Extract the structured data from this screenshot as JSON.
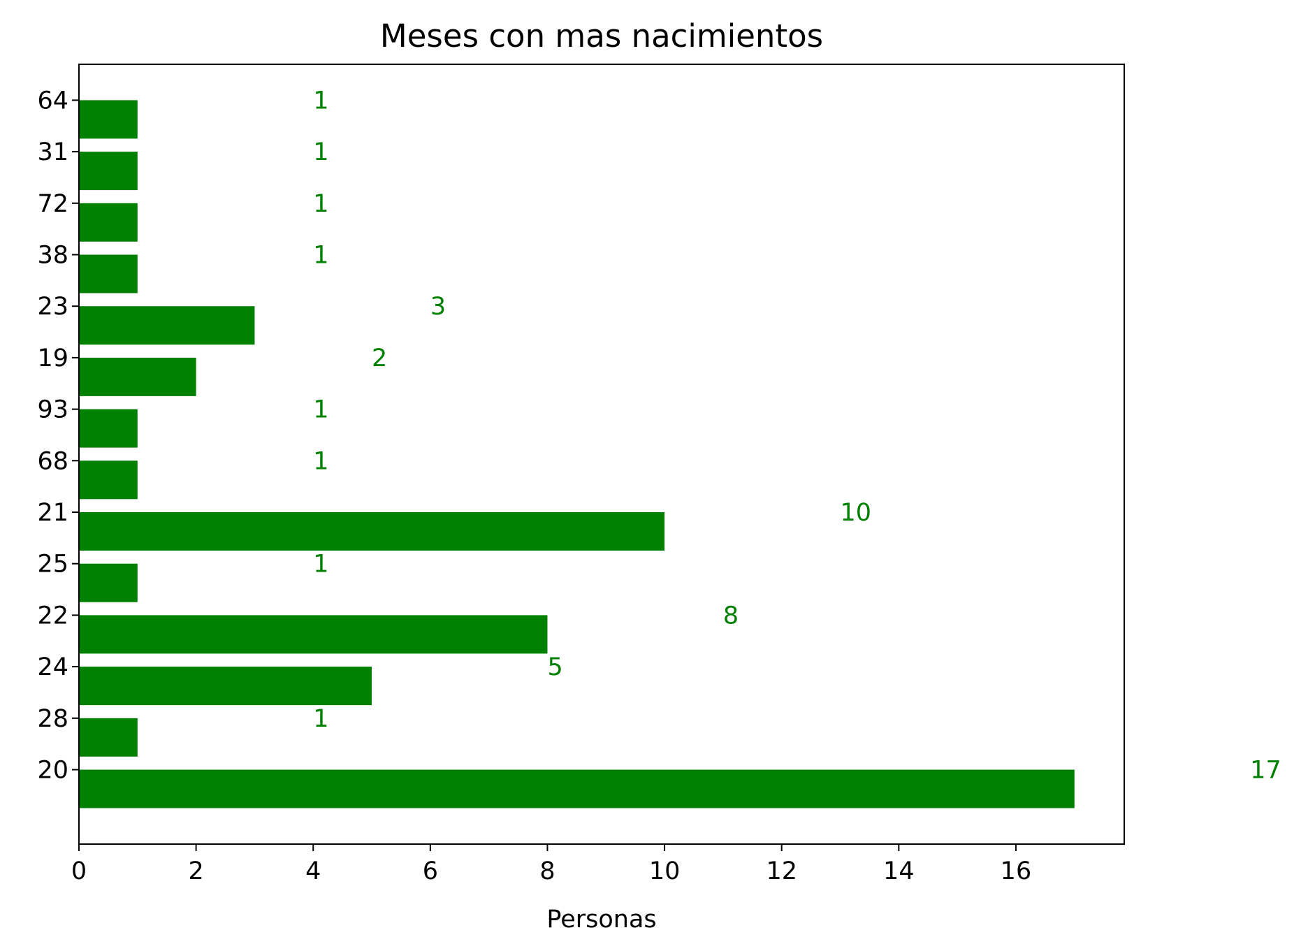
{
  "chart_data": {
    "type": "bar",
    "orientation": "horizontal",
    "title": "Meses con mas nacimientos",
    "xlabel": "Personas",
    "ylabel": "",
    "categories": [
      "20",
      "28",
      "24",
      "22",
      "25",
      "21",
      "68",
      "93",
      "19",
      "23",
      "38",
      "72",
      "31",
      "64"
    ],
    "values": [
      17,
      1,
      5,
      8,
      1,
      10,
      1,
      1,
      2,
      3,
      1,
      1,
      1,
      1
    ],
    "xlim": [
      0,
      17.85
    ],
    "xticks": [
      0,
      2,
      4,
      6,
      8,
      10,
      12,
      14,
      16
    ],
    "bar_color": "#008000",
    "label_color": "#008000",
    "label_offset": 3,
    "grid": false,
    "legend": false
  }
}
